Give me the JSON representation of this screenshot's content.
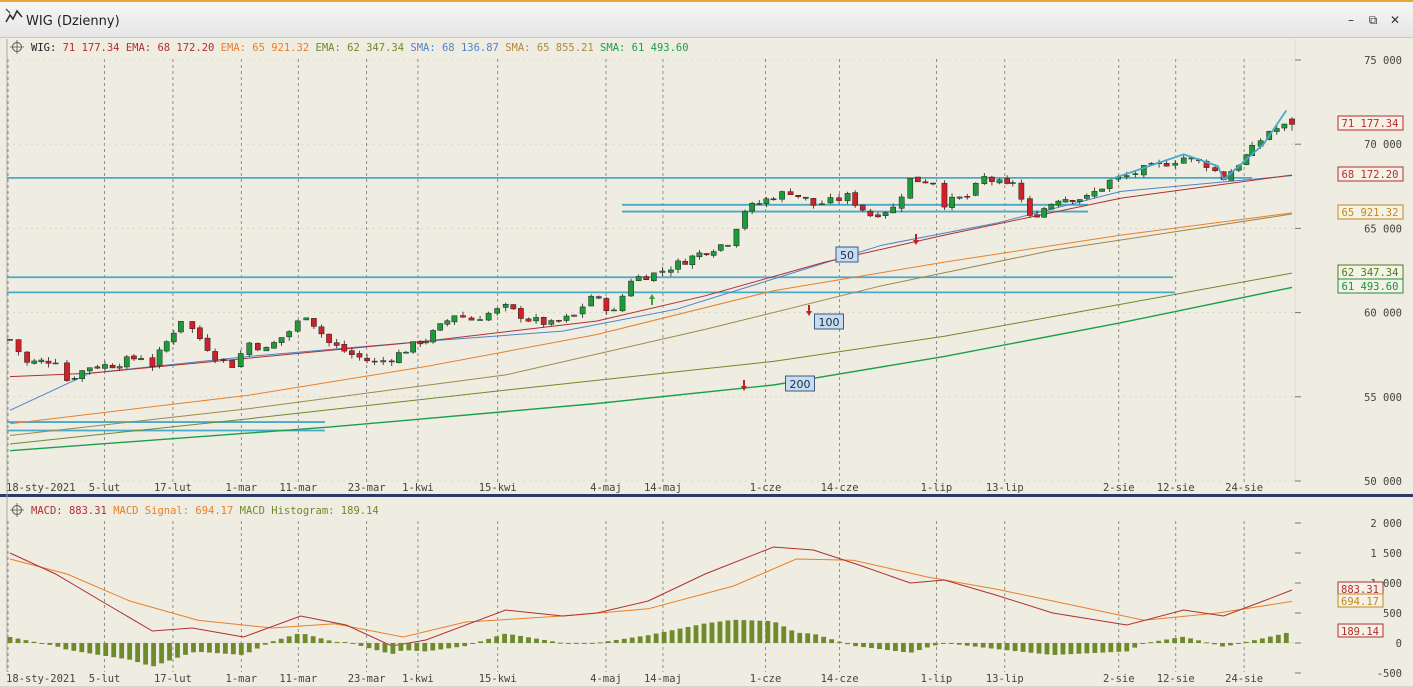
{
  "window": {
    "title": "WIG (Dzienny)",
    "controls": [
      "minimize",
      "restore",
      "close"
    ]
  },
  "price_panel": {
    "legend": [
      {
        "label": "WIG:",
        "value": "71 177.34",
        "color": "#c0282d"
      },
      {
        "label": "EMA:",
        "value": "68 172.20",
        "color": "#b03030"
      },
      {
        "label": "EMA:",
        "value": "65 921.32",
        "color": "#e8802a"
      },
      {
        "label": "EMA:",
        "value": "62 347.34",
        "color": "#6f8a2a"
      },
      {
        "label": "SMA:",
        "value": "68 136.87",
        "color": "#4f84c9"
      },
      {
        "label": "SMA:",
        "value": "65 855.21",
        "color": "#b08a3a"
      },
      {
        "label": "SMA:",
        "value": "61 493.60",
        "color": "#1aa04a"
      }
    ],
    "y_ticks": [
      "75 000",
      "70 000",
      "65 000",
      "60 000",
      "55 000",
      "50 000"
    ],
    "value_tags": [
      {
        "text": "71 177.34",
        "color": "#c0282d"
      },
      {
        "text": "68 172.20",
        "color": "#b03030"
      },
      {
        "text": "65 921.32",
        "color": "#c08a20"
      },
      {
        "text": "62 347.34",
        "color": "#4f7a20"
      },
      {
        "text": "61 493.60",
        "color": "#1a9040"
      }
    ],
    "ma_labels": [
      "50",
      "100",
      "200"
    ]
  },
  "macd_panel": {
    "legend": [
      {
        "label": "MACD:",
        "value": "883.31",
        "color": "#b03030"
      },
      {
        "label": "MACD Signal:",
        "value": "694.17",
        "color": "#e8802a"
      },
      {
        "label": "MACD Histogram:",
        "value": "189.14",
        "color": "#6f8a2a"
      }
    ],
    "y_ticks": [
      "2 000",
      "1 500",
      "1 000",
      "500",
      "0",
      "-500"
    ],
    "value_tags": [
      {
        "text": "883.31",
        "color": "#b03030"
      },
      {
        "text": "694.17",
        "color": "#c08a20"
      },
      {
        "text": "189.14",
        "color": "#b03030"
      }
    ]
  },
  "x_ticks": [
    "18-sty-2021",
    "5-lut",
    "17-lut",
    "1-mar",
    "11-mar",
    "23-mar",
    "1-kwi",
    "15-kwi",
    "4-maj",
    "14-maj",
    "1-cze",
    "14-cze",
    "1-lip",
    "13-lip",
    "2-sie",
    "12-sie",
    "24-sie"
  ],
  "chart_data": [
    {
      "type": "candlestick",
      "title": "WIG (Dzienny)",
      "ylim": [
        50000,
        75000
      ],
      "close_series": [
        {
          "date": "2021-01-18",
          "close": 58400
        },
        {
          "date": "2021-01-21",
          "close": 57000
        },
        {
          "date": "2021-01-26",
          "close": 57200
        },
        {
          "date": "2021-01-28",
          "close": 56000
        },
        {
          "date": "2021-02-01",
          "close": 56800
        },
        {
          "date": "2021-02-05",
          "close": 56900
        },
        {
          "date": "2021-02-10",
          "close": 57400
        },
        {
          "date": "2021-02-12",
          "close": 56900
        },
        {
          "date": "2021-02-17",
          "close": 59600
        },
        {
          "date": "2021-02-19",
          "close": 59000
        },
        {
          "date": "2021-02-23",
          "close": 57400
        },
        {
          "date": "2021-02-26",
          "close": 56900
        },
        {
          "date": "2021-03-01",
          "close": 58200
        },
        {
          "date": "2021-03-04",
          "close": 57800
        },
        {
          "date": "2021-03-08",
          "close": 58900
        },
        {
          "date": "2021-03-11",
          "close": 59900
        },
        {
          "date": "2021-03-15",
          "close": 58200
        },
        {
          "date": "2021-03-19",
          "close": 57500
        },
        {
          "date": "2021-03-23",
          "close": 57000
        },
        {
          "date": "2021-03-26",
          "close": 57300
        },
        {
          "date": "2021-03-31",
          "close": 58300
        },
        {
          "date": "2021-04-01",
          "close": 58400
        },
        {
          "date": "2021-04-06",
          "close": 59900
        },
        {
          "date": "2021-04-09",
          "close": 59600
        },
        {
          "date": "2021-04-15",
          "close": 60300
        },
        {
          "date": "2021-04-19",
          "close": 59600
        },
        {
          "date": "2021-04-23",
          "close": 59300
        },
        {
          "date": "2021-04-27",
          "close": 59800
        },
        {
          "date": "2021-04-30",
          "close": 61000
        },
        {
          "date": "2021-05-04",
          "close": 60000
        },
        {
          "date": "2021-05-07",
          "close": 62000
        },
        {
          "date": "2021-05-11",
          "close": 62300
        },
        {
          "date": "2021-05-14",
          "close": 62700
        },
        {
          "date": "2021-05-19",
          "close": 63500
        },
        {
          "date": "2021-05-24",
          "close": 64200
        },
        {
          "date": "2021-05-27",
          "close": 66100
        },
        {
          "date": "2021-06-01",
          "close": 66900
        },
        {
          "date": "2021-06-04",
          "close": 67200
        },
        {
          "date": "2021-06-08",
          "close": 66400
        },
        {
          "date": "2021-06-11",
          "close": 66600
        },
        {
          "date": "2021-06-14",
          "close": 66900
        },
        {
          "date": "2021-06-18",
          "close": 65800
        },
        {
          "date": "2021-06-22",
          "close": 66200
        },
        {
          "date": "2021-06-25",
          "close": 67900
        },
        {
          "date": "2021-06-29",
          "close": 67800
        },
        {
          "date": "2021-07-01",
          "close": 66500
        },
        {
          "date": "2021-07-05",
          "close": 66900
        },
        {
          "date": "2021-07-08",
          "close": 68000
        },
        {
          "date": "2021-07-12",
          "close": 67500
        },
        {
          "date": "2021-07-13",
          "close": 67800
        },
        {
          "date": "2021-07-16",
          "close": 65600
        },
        {
          "date": "2021-07-21",
          "close": 66800
        },
        {
          "date": "2021-07-26",
          "close": 66800
        },
        {
          "date": "2021-07-30",
          "close": 67800
        },
        {
          "date": "2021-08-02",
          "close": 68100
        },
        {
          "date": "2021-08-05",
          "close": 68500
        },
        {
          "date": "2021-08-09",
          "close": 68900
        },
        {
          "date": "2021-08-12",
          "close": 69200
        },
        {
          "date": "2021-08-16",
          "close": 68800
        },
        {
          "date": "2021-08-19",
          "close": 68000
        },
        {
          "date": "2021-08-23",
          "close": 69300
        },
        {
          "date": "2021-08-24",
          "close": 69700
        },
        {
          "date": "2021-08-27",
          "close": 70800
        },
        {
          "date": "2021-08-31",
          "close": 71177.34
        }
      ],
      "series": [
        {
          "name": "EMA",
          "last": 68172.2
        },
        {
          "name": "EMA",
          "last": 65921.32
        },
        {
          "name": "EMA",
          "last": 62347.34
        },
        {
          "name": "SMA",
          "last": 68136.87
        },
        {
          "name": "SMA",
          "last": 65855.21
        },
        {
          "name": "SMA",
          "last": 61493.6
        }
      ]
    },
    {
      "type": "line",
      "ylim": [
        -500,
        2000
      ],
      "series": [
        {
          "name": "MACD",
          "last": 883.31
        },
        {
          "name": "MACD Signal",
          "last": 694.17
        },
        {
          "name": "MACD Histogram",
          "last": 189.14
        }
      ]
    }
  ]
}
